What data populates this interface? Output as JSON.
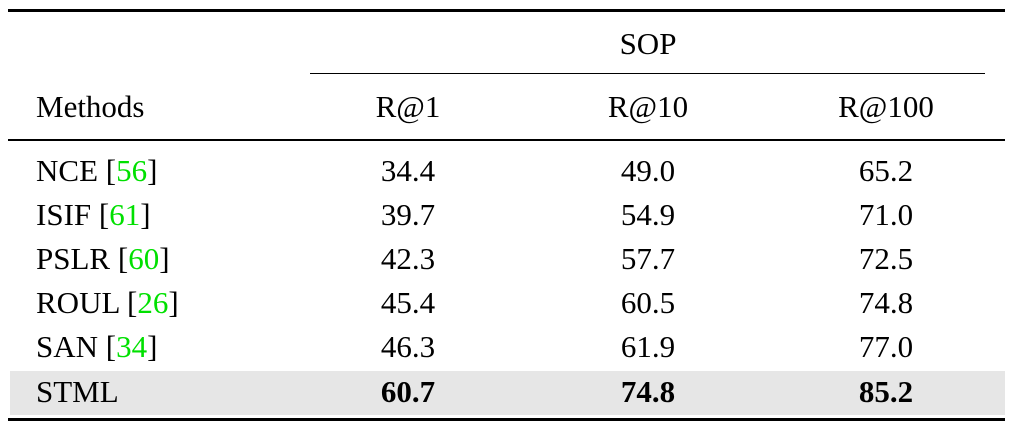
{
  "table": {
    "group_header": "SOP",
    "methods_header": "Methods",
    "metric_headers": [
      "R@1",
      "R@10",
      "R@100"
    ],
    "rows": [
      {
        "method": "NCE",
        "cite": "56",
        "values": [
          "34.4",
          "49.0",
          "65.2"
        ]
      },
      {
        "method": "ISIF",
        "cite": "61",
        "values": [
          "39.7",
          "54.9",
          "71.0"
        ]
      },
      {
        "method": "PSLR",
        "cite": "60",
        "values": [
          "42.3",
          "57.7",
          "72.5"
        ]
      },
      {
        "method": "ROUL",
        "cite": "26",
        "values": [
          "45.4",
          "60.5",
          "74.8"
        ]
      },
      {
        "method": "SAN",
        "cite": "34",
        "values": [
          "46.3",
          "61.9",
          "77.0"
        ]
      },
      {
        "method": "STML",
        "cite": "",
        "values": [
          "60.7",
          "74.8",
          "85.2"
        ],
        "highlight": true
      }
    ]
  },
  "colors": {
    "citation": "#00e000",
    "highlight_row": "#e6e6e6"
  }
}
